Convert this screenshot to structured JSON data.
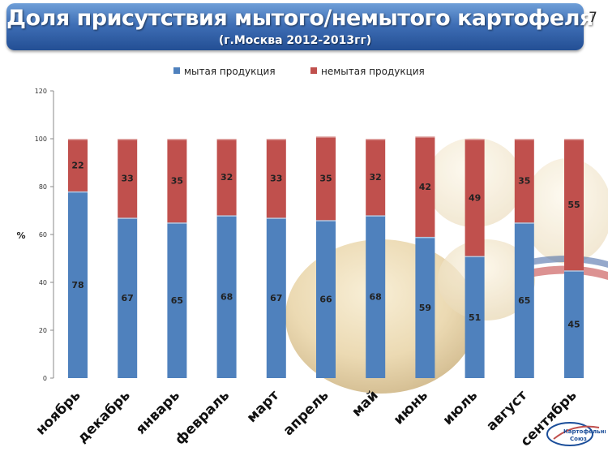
{
  "header": {
    "title": "Доля присутствия мытого/немытого картофеля",
    "subtitle": "(г.Москва 2012-2013гг)",
    "slide_number": "7"
  },
  "logo": {
    "line1": "Картофельный",
    "line2": "Союз"
  },
  "chart_data": {
    "type": "bar",
    "stacked": true,
    "categories": [
      "ноябрь",
      "декабрь",
      "январь",
      "февраль",
      "март",
      "апрель",
      "май",
      "июнь",
      "июль",
      "август",
      "сентябрь"
    ],
    "series": [
      {
        "name": "мытая продукция",
        "color": "#4f81bd",
        "values": [
          78,
          67,
          65,
          68,
          67,
          66,
          68,
          59,
          51,
          65,
          45
        ]
      },
      {
        "name": "немытая продукция",
        "color": "#c0504d",
        "values": [
          22,
          33,
          35,
          32,
          33,
          35,
          32,
          42,
          49,
          35,
          55
        ]
      }
    ],
    "ylabel": "%",
    "ylim": [
      0,
      120
    ],
    "yticks": [
      0,
      20,
      40,
      60,
      80,
      100,
      120
    ],
    "grid": false,
    "legend": "top"
  }
}
